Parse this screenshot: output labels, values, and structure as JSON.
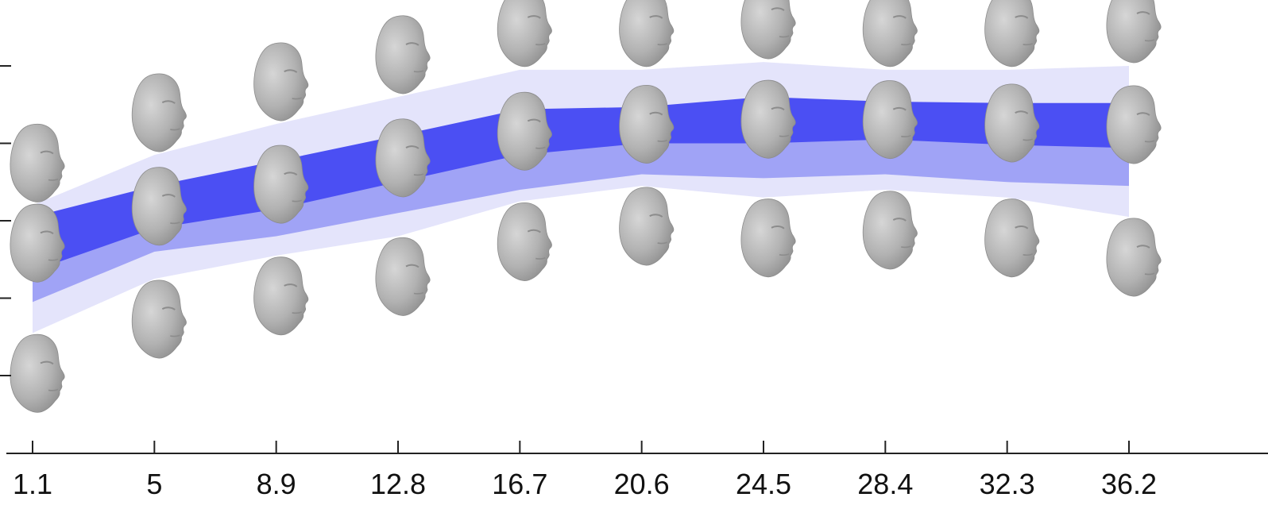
{
  "chart_data": {
    "type": "area",
    "title": "",
    "xlabel": "",
    "ylabel": "",
    "x": [
      1.1,
      5,
      8.9,
      12.8,
      16.7,
      20.6,
      24.5,
      28.4,
      32.3,
      36.2
    ],
    "x_tick_labels": [
      "1.1",
      "5",
      "8.9",
      "12.8",
      "16.7",
      "20.6",
      "24.5",
      "28.4",
      "32.3",
      "36.2"
    ],
    "xlim": [
      1.1,
      40.2
    ],
    "ylim": [
      -3.0,
      2.2
    ],
    "y_ticks": [
      -2,
      -1,
      0,
      1,
      2
    ],
    "grid": false,
    "legend": "none",
    "series": [
      {
        "lower": [
          -1.45,
          -0.75,
          -0.45,
          -0.2,
          0.25,
          0.45,
          0.3,
          0.4,
          0.3,
          0.05
        ],
        "upper": [
          0.2,
          0.85,
          1.25,
          1.6,
          1.95,
          1.95,
          2.05,
          1.95,
          1.95,
          2.0
        ],
        "color": "#e4e4fb"
      },
      {
        "lower": [
          -1.05,
          -0.4,
          -0.2,
          0.1,
          0.4,
          0.6,
          0.55,
          0.6,
          0.5,
          0.45
        ],
        "upper": [
          -0.35,
          0.1,
          0.45,
          0.85,
          1.2,
          1.2,
          1.35,
          1.25,
          1.25,
          1.3
        ],
        "color": "#a0a3f6"
      },
      {
        "lower": [
          -0.65,
          -0.1,
          0.15,
          0.5,
          0.85,
          1.0,
          1.0,
          1.05,
          0.98,
          0.94
        ],
        "upper": [
          0.05,
          0.45,
          0.77,
          1.1,
          1.44,
          1.47,
          1.6,
          1.54,
          1.52,
          1.52
        ],
        "color": "#4b4ff3"
      }
    ],
    "face_markers": {
      "rows": [
        "upper",
        "mean",
        "lower"
      ],
      "description_color": "#a8a8a8"
    }
  },
  "colors": {
    "axis": "#222222",
    "face": "#b4b4b4",
    "face_shadow": "#8c8c8c"
  }
}
